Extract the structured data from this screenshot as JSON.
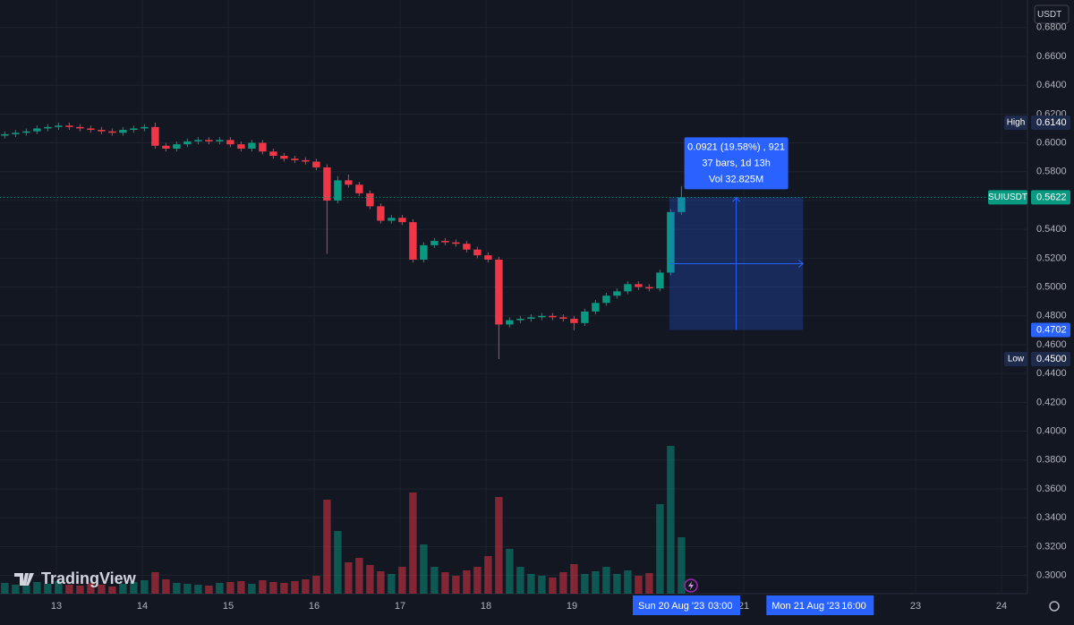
{
  "chart_data": {
    "type": "candlestick",
    "currency": "USDT",
    "symbol": "SUIUSDT",
    "brand": "TradingView",
    "xlim": [
      12.344,
      24.302
    ],
    "xticks": [
      13,
      14,
      15,
      16,
      17,
      18,
      19,
      21,
      23,
      24
    ],
    "ylim": [
      0.2873,
      0.6991
    ],
    "yticks": [
      {
        "value": 0.3,
        "label": "0.3000"
      },
      {
        "value": 0.32,
        "label": "0.3200"
      },
      {
        "value": 0.34,
        "label": "0.3400"
      },
      {
        "value": 0.36,
        "label": "0.3600"
      },
      {
        "value": 0.38,
        "label": "0.3800"
      },
      {
        "value": 0.4,
        "label": "0.4000"
      },
      {
        "value": 0.42,
        "label": "0.4200"
      },
      {
        "value": 0.44,
        "label": "0.4400"
      },
      {
        "value": 0.46,
        "label": "0.4600"
      },
      {
        "value": 0.48,
        "label": "0.4800"
      },
      {
        "value": 0.5,
        "label": "0.5000"
      },
      {
        "value": 0.52,
        "label": "0.5200"
      },
      {
        "value": 0.54,
        "label": "0.5400"
      },
      {
        "value": 0.56,
        "label": "0.5600"
      },
      {
        "value": 0.58,
        "label": "0.5800"
      },
      {
        "value": 0.6,
        "label": "0.6000"
      },
      {
        "value": 0.62,
        "label": "0.6200"
      },
      {
        "value": 0.64,
        "label": "0.6400"
      },
      {
        "value": 0.66,
        "label": "0.6600"
      },
      {
        "value": 0.68,
        "label": "0.6800"
      }
    ],
    "grid": true,
    "up_color": "#089981",
    "down_color": "#f23645",
    "x": [
      12.4,
      12.525,
      12.65,
      12.775,
      12.9,
      13.025,
      13.15,
      13.275,
      13.4,
      13.525,
      13.65,
      13.775,
      13.9,
      14.025,
      14.15,
      14.275,
      14.4,
      14.525,
      14.65,
      14.775,
      14.9,
      15.025,
      15.15,
      15.275,
      15.4,
      15.525,
      15.65,
      15.775,
      15.9,
      16.025,
      16.15,
      16.275,
      16.4,
      16.525,
      16.65,
      16.775,
      16.9,
      17.025,
      17.15,
      17.275,
      17.4,
      17.525,
      17.65,
      17.775,
      17.9,
      18.025,
      18.15,
      18.275,
      18.4,
      18.525,
      18.65,
      18.775,
      18.9,
      19.025,
      19.15,
      19.275,
      19.4,
      19.525,
      19.65,
      19.775,
      19.9,
      20.025,
      20.15,
      20.275
    ],
    "open": [
      0.605,
      0.606,
      0.607,
      0.608,
      0.61,
      0.611,
      0.612,
      0.611,
      0.61,
      0.609,
      0.608,
      0.607,
      0.609,
      0.61,
      0.611,
      0.598,
      0.596,
      0.599,
      0.601,
      0.602,
      0.601,
      0.602,
      0.599,
      0.596,
      0.6,
      0.594,
      0.591,
      0.589,
      0.588,
      0.587,
      0.583,
      0.56,
      0.574,
      0.571,
      0.565,
      0.556,
      0.546,
      0.548,
      0.545,
      0.519,
      0.529,
      0.532,
      0.531,
      0.53,
      0.526,
      0.522,
      0.519,
      0.474,
      0.477,
      0.478,
      0.479,
      0.48,
      0.479,
      0.478,
      0.475,
      0.483,
      0.489,
      0.494,
      0.497,
      0.502,
      0.5,
      0.499,
      0.51,
      0.552
    ],
    "high": [
      0.608,
      0.609,
      0.61,
      0.612,
      0.613,
      0.614,
      0.614,
      0.613,
      0.612,
      0.611,
      0.61,
      0.611,
      0.612,
      0.613,
      0.614,
      0.6,
      0.601,
      0.603,
      0.604,
      0.604,
      0.604,
      0.604,
      0.601,
      0.602,
      0.602,
      0.596,
      0.593,
      0.591,
      0.59,
      0.589,
      0.585,
      0.577,
      0.578,
      0.573,
      0.567,
      0.558,
      0.55,
      0.55,
      0.547,
      0.531,
      0.534,
      0.534,
      0.533,
      0.532,
      0.528,
      0.524,
      0.521,
      0.479,
      0.48,
      0.481,
      0.482,
      0.482,
      0.481,
      0.48,
      0.485,
      0.491,
      0.496,
      0.499,
      0.504,
      0.504,
      0.502,
      0.512,
      0.554,
      0.57
    ],
    "low": [
      0.603,
      0.604,
      0.605,
      0.606,
      0.608,
      0.609,
      0.609,
      0.608,
      0.607,
      0.606,
      0.605,
      0.605,
      0.607,
      0.608,
      0.596,
      0.594,
      0.594,
      0.597,
      0.599,
      0.599,
      0.599,
      0.597,
      0.594,
      0.594,
      0.592,
      0.589,
      0.587,
      0.586,
      0.585,
      0.581,
      0.523,
      0.558,
      0.569,
      0.563,
      0.554,
      0.544,
      0.544,
      0.543,
      0.517,
      0.517,
      0.527,
      0.529,
      0.528,
      0.524,
      0.52,
      0.517,
      0.45,
      0.472,
      0.475,
      0.476,
      0.477,
      0.477,
      0.476,
      0.47,
      0.473,
      0.481,
      0.487,
      0.492,
      0.495,
      0.498,
      0.497,
      0.497,
      0.508,
      0.55
    ],
    "close": [
      0.606,
      0.607,
      0.608,
      0.61,
      0.611,
      0.612,
      0.611,
      0.61,
      0.609,
      0.608,
      0.607,
      0.609,
      0.61,
      0.611,
      0.598,
      0.596,
      0.599,
      0.601,
      0.602,
      0.601,
      0.602,
      0.599,
      0.596,
      0.6,
      0.594,
      0.591,
      0.589,
      0.588,
      0.587,
      0.583,
      0.56,
      0.574,
      0.571,
      0.565,
      0.556,
      0.546,
      0.548,
      0.545,
      0.519,
      0.529,
      0.532,
      0.531,
      0.53,
      0.526,
      0.522,
      0.519,
      0.474,
      0.477,
      0.478,
      0.479,
      0.48,
      0.479,
      0.478,
      0.475,
      0.483,
      0.489,
      0.494,
      0.497,
      0.502,
      0.5,
      0.499,
      0.51,
      0.552,
      0.5622
    ],
    "volume": [
      1.2,
      1.0,
      0.9,
      1.3,
      1.1,
      1.4,
      1.0,
      0.9,
      1.2,
      1.0,
      0.8,
      1.1,
      1.3,
      1.5,
      2.4,
      1.6,
      1.2,
      1.1,
      1.0,
      0.9,
      1.2,
      1.3,
      1.4,
      1.1,
      1.5,
      1.3,
      1.2,
      1.4,
      1.6,
      2.0,
      10.5,
      7.0,
      3.5,
      4.0,
      3.2,
      2.5,
      2.2,
      3.0,
      11.3,
      5.5,
      3.0,
      2.4,
      2.0,
      2.6,
      3.0,
      4.2,
      10.8,
      5.0,
      3.0,
      2.2,
      2.0,
      1.8,
      2.4,
      3.3,
      2.2,
      2.5,
      3.0,
      2.2,
      2.6,
      2.0,
      2.3,
      10.0,
      16.5,
      6.3
    ],
    "high_marker": {
      "label": "High",
      "value": 0.614,
      "text": "0.6140"
    },
    "low_marker": {
      "label": "Low",
      "value": 0.45,
      "text": "0.4500"
    },
    "last_price": {
      "value": 0.5622,
      "text": "0.5622"
    },
    "measure": {
      "xrange": [
        20.135,
        21.69
      ],
      "from": 0.5622,
      "to": 0.4702,
      "to_text": "0.4702",
      "lines": [
        "0.0921 (19.58%) , 921",
        "37 bars, 1d 13h",
        "Vol 32.825M"
      ]
    },
    "crosshair_labels": [
      {
        "x": 20.125,
        "date": "Sun 20 Aug '23",
        "time": "03:00"
      },
      {
        "x": 21.68,
        "date": "Mon 21 Aug '23",
        "time": "16:00"
      }
    ]
  }
}
